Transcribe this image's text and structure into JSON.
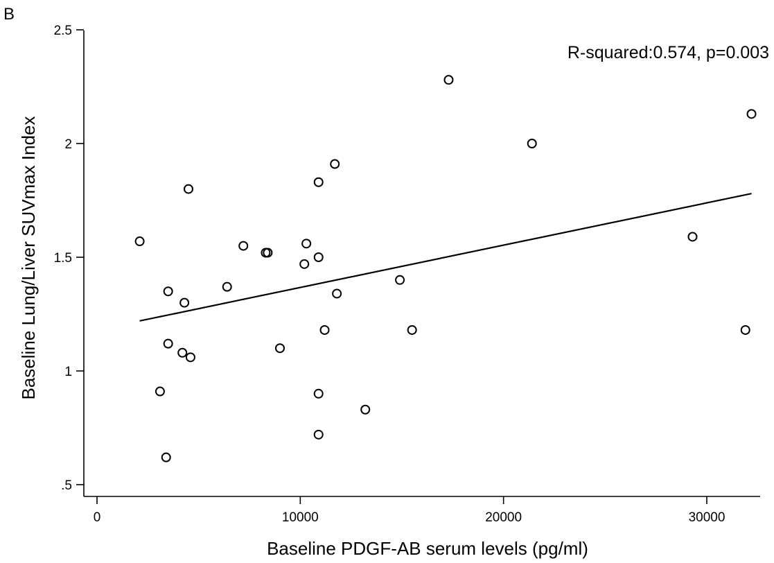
{
  "chart_data": {
    "type": "scatter",
    "panel_label": "B",
    "xlabel": "Baseline PDGF-AB serum levels (pg/ml)",
    "ylabel": "Baseline Lung/Liver SUVmax Index",
    "annotation": "R-squared:0.574, p=0.003",
    "xlim": [
      -500,
      32500
    ],
    "ylim": [
      0.45,
      2.55
    ],
    "xticks": [
      {
        "value": 0,
        "label": "0"
      },
      {
        "value": 10000,
        "label": "10000"
      },
      {
        "value": 20000,
        "label": "20000"
      },
      {
        "value": 30000,
        "label": "30000"
      }
    ],
    "yticks": [
      {
        "value": 0.5,
        "label": ".5"
      },
      {
        "value": 1,
        "label": "1"
      },
      {
        "value": 1.5,
        "label": "1.5"
      },
      {
        "value": 2,
        "label": "2"
      },
      {
        "value": 2.5,
        "label": "2.5"
      }
    ],
    "points": [
      {
        "x": 2100,
        "y": 1.57
      },
      {
        "x": 3100,
        "y": 0.91
      },
      {
        "x": 3400,
        "y": 0.62
      },
      {
        "x": 3500,
        "y": 1.35
      },
      {
        "x": 3500,
        "y": 1.12
      },
      {
        "x": 4200,
        "y": 1.08
      },
      {
        "x": 4300,
        "y": 1.3
      },
      {
        "x": 4500,
        "y": 1.8
      },
      {
        "x": 4600,
        "y": 1.06
      },
      {
        "x": 6400,
        "y": 1.37
      },
      {
        "x": 7200,
        "y": 1.55
      },
      {
        "x": 8300,
        "y": 1.52
      },
      {
        "x": 8400,
        "y": 1.52
      },
      {
        "x": 9000,
        "y": 1.1
      },
      {
        "x": 10200,
        "y": 1.47
      },
      {
        "x": 10300,
        "y": 1.56
      },
      {
        "x": 10900,
        "y": 1.83
      },
      {
        "x": 10900,
        "y": 1.5
      },
      {
        "x": 10900,
        "y": 0.9
      },
      {
        "x": 10900,
        "y": 0.72
      },
      {
        "x": 11200,
        "y": 1.18
      },
      {
        "x": 11700,
        "y": 1.91
      },
      {
        "x": 11800,
        "y": 1.34
      },
      {
        "x": 13200,
        "y": 0.83
      },
      {
        "x": 14900,
        "y": 1.4
      },
      {
        "x": 15500,
        "y": 1.18
      },
      {
        "x": 17300,
        "y": 2.28
      },
      {
        "x": 21400,
        "y": 2.0
      },
      {
        "x": 29300,
        "y": 1.59
      },
      {
        "x": 31900,
        "y": 1.18
      },
      {
        "x": 32200,
        "y": 2.13
      }
    ],
    "fit_line": {
      "x": [
        2100,
        32200
      ],
      "y": [
        1.22,
        1.78
      ]
    },
    "grid": false,
    "legend": "none"
  }
}
